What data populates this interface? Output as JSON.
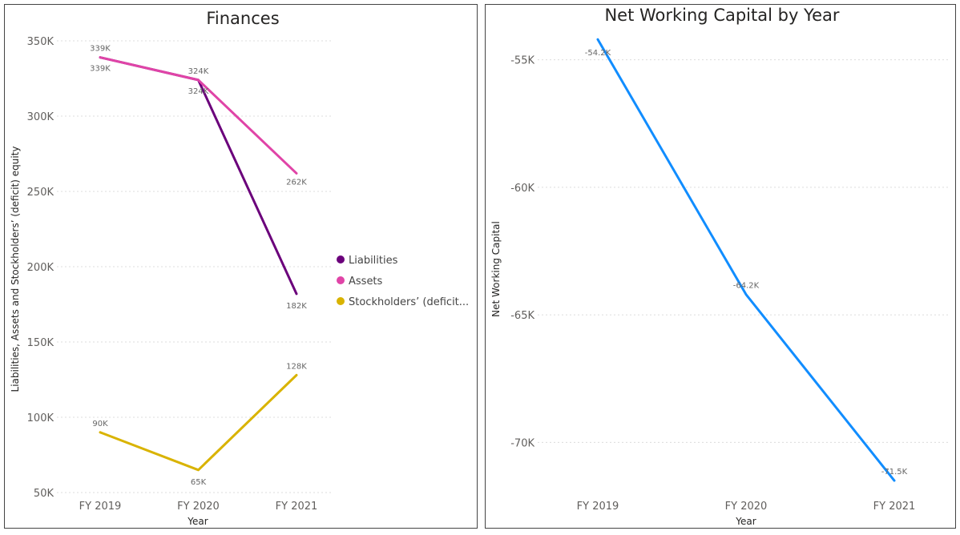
{
  "colors": {
    "liabilities": "#6b007b",
    "assets": "#e044a7",
    "equity": "#d9b300",
    "nwc": "#118dff"
  },
  "chart_data": [
    {
      "type": "line",
      "title": "Finances",
      "xlabel": "Year",
      "ylabel": "Liabilities, Assets and Stockholders’ (deficit) equity",
      "categories": [
        "FY 2019",
        "FY 2020",
        "FY 2021"
      ],
      "ylim": [
        50000,
        350000
      ],
      "yticks": [
        {
          "value": 350000,
          "label": "350K"
        },
        {
          "value": 300000,
          "label": "300K"
        },
        {
          "value": 250000,
          "label": "250K"
        },
        {
          "value": 200000,
          "label": "200K"
        },
        {
          "value": 150000,
          "label": "150K"
        },
        {
          "value": 100000,
          "label": "100K"
        },
        {
          "value": 50000,
          "label": "50K"
        }
      ],
      "grid": true,
      "legend_position": "right",
      "series": [
        {
          "name": "Liabilities",
          "color": "#6b007b",
          "values": [
            339000,
            324000,
            182000
          ],
          "labels": [
            "339K",
            "324K",
            "182K"
          ]
        },
        {
          "name": "Assets",
          "color": "#e044a7",
          "values": [
            339000,
            324000,
            262000
          ],
          "labels": [
            "339K",
            "324K",
            "262K"
          ]
        },
        {
          "name": "Stockholders’ (deficit...",
          "color": "#d9b300",
          "values": [
            90000,
            65000,
            128000
          ],
          "labels": [
            "90K",
            "65K",
            "128K"
          ]
        }
      ]
    },
    {
      "type": "line",
      "title": "Net Working Capital by Year",
      "xlabel": "Year",
      "ylabel": "Net Working Capital",
      "categories": [
        "FY 2019",
        "FY 2020",
        "FY 2021"
      ],
      "ylim": [
        -72000,
        -53000
      ],
      "yticks": [
        {
          "value": -55000,
          "label": "-55K"
        },
        {
          "value": -60000,
          "label": "-60K"
        },
        {
          "value": -65000,
          "label": "-65K"
        },
        {
          "value": -70000,
          "label": "-70K"
        }
      ],
      "grid": true,
      "series": [
        {
          "name": "",
          "color": "#118dff",
          "values": [
            -54200,
            -64200,
            -71500
          ],
          "labels": [
            "-54.2K",
            "-64.2K",
            "-71.5K"
          ]
        }
      ]
    }
  ]
}
